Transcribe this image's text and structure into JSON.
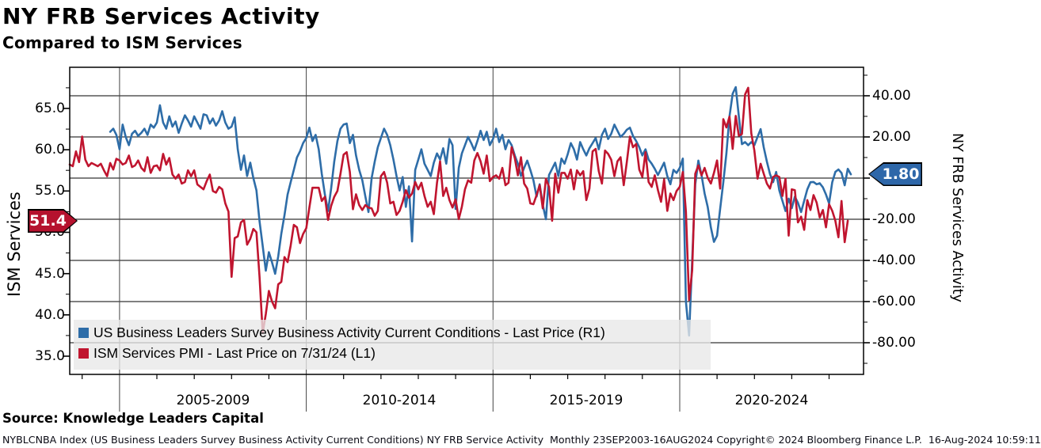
{
  "header": {
    "title": "NY FRB Services Activity",
    "subtitle": "Compared to ISM Services"
  },
  "source_line": "Source: Knowledge Leaders Capital",
  "footer": "NYBLCNBA Index (US Business Leaders Survey Business Activity Current Conditions) NY FRB Service Activity  Monthly 23SEP2003-16AUG2024 Copyright© 2024 Bloomberg Finance L.P.  16-Aug-2024 10:59:11",
  "chart_data": {
    "type": "line",
    "title": "NY FRB Services Activity",
    "subtitle": "Compared to ISM Services",
    "grid": true,
    "left_axis": {
      "label": "ISM Services",
      "range": [
        32.5,
        70
      ],
      "tick_labels": [
        {
          "v": 65,
          "label": "65.0"
        },
        {
          "v": 60,
          "label": "60.0"
        },
        {
          "v": 55,
          "label": "55.0"
        },
        {
          "v": 50,
          "label": "50.0"
        },
        {
          "v": 45,
          "label": "45.0"
        },
        {
          "v": 40,
          "label": "40.0"
        },
        {
          "v": 35,
          "label": "35.0"
        }
      ],
      "badge": {
        "value": "51.4",
        "color": "#B5122E"
      }
    },
    "right_axis": {
      "label": "NY FRB Services Activity",
      "range": [
        -94,
        54
      ],
      "gridline_values": [
        40,
        20,
        0,
        -20,
        -40,
        -60,
        -80
      ],
      "tick_labels": [
        {
          "v": 40,
          "label": "40.00"
        },
        {
          "v": 20,
          "label": "20.00"
        },
        {
          "v": -20,
          "label": "-20.00"
        },
        {
          "v": -40,
          "label": "-40.00"
        },
        {
          "v": -60,
          "label": "-60.00"
        },
        {
          "v": -80,
          "label": "-80.00"
        }
      ],
      "badge": {
        "value": "1.80",
        "color": "#2E67A9"
      }
    },
    "x_axis": {
      "period_labels": [
        "2005-2009",
        "2010-2014",
        "2015-2019",
        "2020-2024"
      ],
      "gridline_years": [
        2005,
        2010,
        2015,
        2020
      ],
      "range_dates": [
        "23SEP2003",
        "16AUG2024"
      ]
    },
    "legend": [
      {
        "swatch_color": "#2E6DA8",
        "label": "US Business Leaders Survey Business Activity Current Conditions - Last Price (R1)"
      },
      {
        "swatch_color": "#C0152F",
        "label": "ISM Services PMI - Last Price on 7/31/24 (L1)"
      }
    ],
    "series": [
      {
        "name": "US Business Leaders Survey Business Activity Current Conditions",
        "axis": "right",
        "color": "#2E6DA8",
        "last_value": 1.8,
        "start_year": 2004,
        "start_month": 10,
        "monthly_values": [
          22.5,
          24.0,
          21.0,
          14.0,
          26.0,
          20.0,
          16.0,
          21.5,
          23.0,
          20.5,
          22.0,
          24.0,
          21.0,
          26.0,
          24.5,
          27.0,
          35.4,
          27.0,
          24.0,
          30.0,
          25.0,
          27.5,
          22.0,
          26.5,
          30.5,
          28.0,
          25.0,
          30.0,
          27.0,
          24.0,
          31.0,
          30.5,
          26.5,
          29.0,
          25.5,
          28.0,
          32.5,
          27.0,
          24.0,
          25.0,
          29.5,
          14.0,
          4.0,
          11.0,
          1.0,
          7.5,
          0.0,
          -6.0,
          -21.0,
          -33.0,
          -45.0,
          -36.0,
          -41.0,
          -46.5,
          -38.0,
          -27.0,
          -18.0,
          -8.0,
          -2.0,
          4.0,
          10.0,
          13.0,
          17.0,
          19.5,
          24.5,
          18.0,
          21.0,
          14.0,
          2.0,
          -8.0,
          -16.0,
          -5.0,
          8.0,
          18.0,
          24.0,
          26.0,
          26.5,
          17.0,
          21.0,
          11.0,
          4.0,
          -1.0,
          -9.0,
          -16.5,
          0.0,
          8.0,
          15.0,
          19.5,
          24.0,
          21.0,
          16.0,
          9.0,
          1.0,
          -6.0,
          0.5,
          -14.0,
          -4.0,
          -30.8,
          4.0,
          9.0,
          14.0,
          7.0,
          4.0,
          1.0,
          7.5,
          12.0,
          9.0,
          14.5,
          7.0,
          19.0,
          16.0,
          -15.0,
          5.0,
          12.0,
          16.0,
          20.0,
          17.0,
          13.5,
          18.0,
          23.0,
          18.5,
          22.5,
          16.0,
          19.0,
          24.0,
          17.5,
          21.0,
          14.0,
          18.5,
          16.0,
          11.0,
          7.0,
          1.0,
          5.0,
          8.5,
          4.0,
          -1.0,
          -9.0,
          -3.0,
          -13.0,
          -20.0,
          1.5,
          4.5,
          7.5,
          1.0,
          9.5,
          7.0,
          11.5,
          17.0,
          14.0,
          9.0,
          17.5,
          14.0,
          11.0,
          14.5,
          17.0,
          19.5,
          14.0,
          21.0,
          24.0,
          19.0,
          21.5,
          26.0,
          23.0,
          20.0,
          21.5,
          23.5,
          24.5,
          20.5,
          18.0,
          15.0,
          11.0,
          14.0,
          9.0,
          7.0,
          4.5,
          1.5,
          4.5,
          7.5,
          1.0,
          -3.0,
          4.0,
          2.5,
          5.0,
          9.5,
          -60.0,
          -76.5,
          -40.0,
          -3.0,
          8.5,
          1.5,
          -7.5,
          -14.0,
          -24.0,
          -31.0,
          -28.0,
          -15.0,
          -2.0,
          12.0,
          30.0,
          41.0,
          44.2,
          30.0,
          16.5,
          17.5,
          16.0,
          17.5,
          16.0,
          20.0,
          23.8,
          15.0,
          8.0,
          2.0,
          -2.0,
          3.0,
          -6.0,
          -11.0,
          -16.0,
          -10.0,
          -14.6,
          -9.0,
          -12.0,
          -16.5,
          -11.0,
          -5.5,
          -2.0,
          -1.9,
          -3.0,
          -2.5,
          -4.5,
          -8.0,
          -12.3,
          -2.0,
          3.0,
          4.2,
          2.5,
          -3.5,
          4.5,
          1.8
        ]
      },
      {
        "name": "ISM Services PMI",
        "axis": "left",
        "color": "#C0152F",
        "last_value": 51.4,
        "start_year": 2003,
        "start_month": 9,
        "monthly_values": [
          58.2,
          58.0,
          59.8,
          58.5,
          61.6,
          58.8,
          58.0,
          58.4,
          58.2,
          58.0,
          58.3,
          57.5,
          56.8,
          58.4,
          57.6,
          58.9,
          58.7,
          58.2,
          58.4,
          59.3,
          57.9,
          58.1,
          58.7,
          57.8,
          57.4,
          59.1,
          57.2,
          58.0,
          58.1,
          57.5,
          59.5,
          58.2,
          59.0,
          57.0,
          56.5,
          57.0,
          55.9,
          56.1,
          57.5,
          56.8,
          57.5,
          55.8,
          55.5,
          55.2,
          56.2,
          57.0,
          55.0,
          54.8,
          55.5,
          55.2,
          53.5,
          52.5,
          44.6,
          49.3,
          49.5,
          51.2,
          51.5,
          48.5,
          49.2,
          50.4,
          50.0,
          44.6,
          37.8,
          40.1,
          42.9,
          41.6,
          40.8,
          43.7,
          44.0,
          47.0,
          46.4,
          48.4,
          50.9,
          50.6,
          48.7,
          49.8,
          50.5,
          53.0,
          55.4,
          55.4,
          55.4,
          53.8,
          54.3,
          51.5,
          53.2,
          54.3,
          55.0,
          57.1,
          59.4,
          59.7,
          57.3,
          52.8,
          54.6,
          53.3,
          52.7,
          53.3,
          53.0,
          52.9,
          52.0,
          52.6,
          56.8,
          57.3,
          56.0,
          53.5,
          53.7,
          52.1,
          52.6,
          53.7,
          55.1,
          54.2,
          54.7,
          56.1,
          55.2,
          56.0,
          54.4,
          53.1,
          53.7,
          52.2,
          56.0,
          58.6,
          54.4,
          55.4,
          53.9,
          53.0,
          54.0,
          51.6,
          53.1,
          55.2,
          56.3,
          56.0,
          58.7,
          59.6,
          58.6,
          57.1,
          59.3,
          56.2,
          56.7,
          56.9,
          56.5,
          57.8,
          55.7,
          56.0,
          60.3,
          59.0,
          56.9,
          59.1,
          55.9,
          55.3,
          53.5,
          53.4,
          54.5,
          55.7,
          52.9,
          56.5,
          55.5,
          51.4,
          57.1,
          54.8,
          57.2,
          57.2,
          56.5,
          57.6,
          55.2,
          57.5,
          56.9,
          57.4,
          53.9,
          55.3,
          59.8,
          60.1,
          57.4,
          55.9,
          59.9,
          59.5,
          58.8,
          56.8,
          58.6,
          59.1,
          55.7,
          58.5,
          61.6,
          60.3,
          60.7,
          57.6,
          56.7,
          59.7,
          56.1,
          55.5,
          56.9,
          55.1,
          53.7,
          56.4,
          52.6,
          54.7,
          53.9,
          55.0,
          55.5,
          57.3,
          52.5,
          41.8,
          45.4,
          57.1,
          58.1,
          56.9,
          57.8,
          56.6,
          55.9,
          57.2,
          58.7,
          55.3,
          63.7,
          62.7,
          64.0,
          60.1,
          64.1,
          61.7,
          61.9,
          66.7,
          67.5,
          62.0,
          59.9,
          56.5,
          58.3,
          57.1,
          55.9,
          55.3,
          56.7,
          56.9,
          56.7,
          54.4,
          56.5,
          49.6,
          55.2,
          55.1,
          51.2,
          51.9,
          50.3,
          53.9,
          52.7,
          54.5,
          53.6,
          51.8,
          52.7,
          50.6,
          53.4,
          52.6,
          51.4,
          49.4,
          53.8,
          48.8,
          51.4
        ]
      }
    ]
  }
}
